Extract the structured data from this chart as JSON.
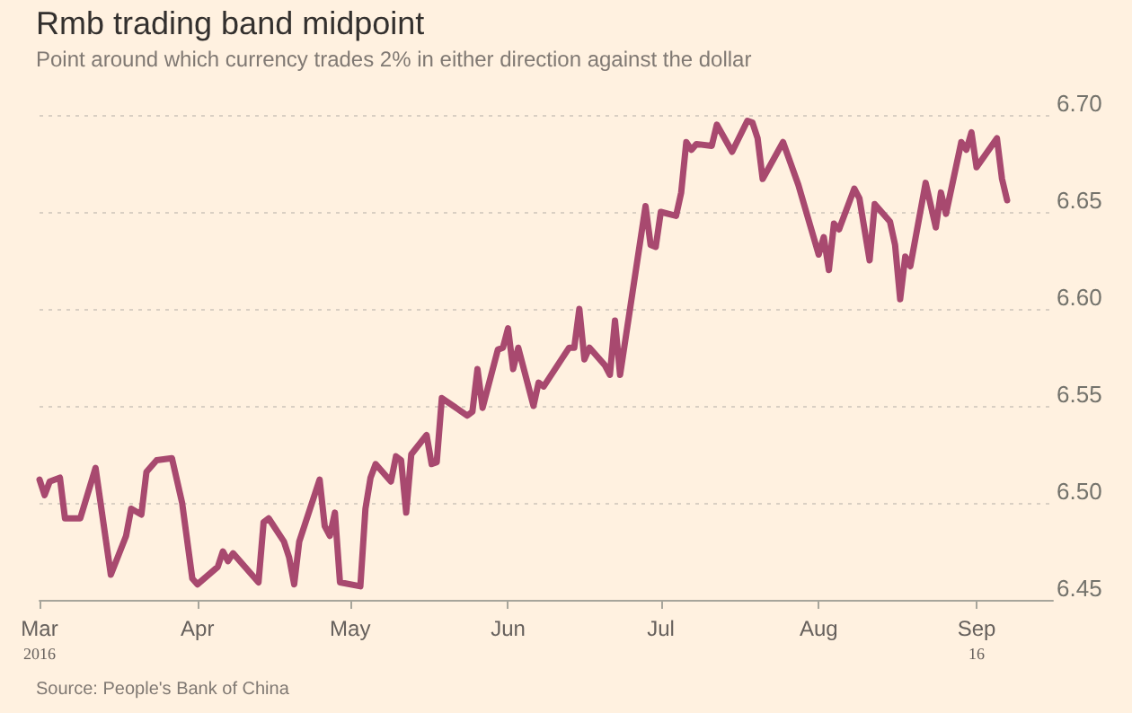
{
  "chart_data": {
    "type": "line",
    "title": "Rmb trading band midpoint",
    "subtitle": "Point around which currency trades 2% in either direction against the dollar",
    "x": [
      "2016-03-01",
      "2016-03-02",
      "2016-03-03",
      "2016-03-05",
      "2016-03-06",
      "2016-03-09",
      "2016-03-12",
      "2016-03-15",
      "2016-03-18",
      "2016-03-19",
      "2016-03-21",
      "2016-03-22",
      "2016-03-24",
      "2016-03-27",
      "2016-03-29",
      "2016-03-31",
      "2016-04-01",
      "2016-04-05",
      "2016-04-06",
      "2016-04-07",
      "2016-04-08",
      "2016-04-13",
      "2016-04-14",
      "2016-04-15",
      "2016-04-18",
      "2016-04-19",
      "2016-04-20",
      "2016-04-21",
      "2016-04-25",
      "2016-04-26",
      "2016-04-27",
      "2016-04-28",
      "2016-04-29",
      "2016-05-03",
      "2016-05-04",
      "2016-05-05",
      "2016-05-06",
      "2016-05-09",
      "2016-05-10",
      "2016-05-11",
      "2016-05-12",
      "2016-05-13",
      "2016-05-16",
      "2016-05-17",
      "2016-05-18",
      "2016-05-19",
      "2016-05-24",
      "2016-05-25",
      "2016-05-26",
      "2016-05-27",
      "2016-05-30",
      "2016-05-31",
      "2016-06-01",
      "2016-06-02",
      "2016-06-03",
      "2016-06-06",
      "2016-06-07",
      "2016-06-08",
      "2016-06-13",
      "2016-06-14",
      "2016-06-15",
      "2016-06-16",
      "2016-06-17",
      "2016-06-20",
      "2016-06-21",
      "2016-06-22",
      "2016-06-23",
      "2016-06-28",
      "2016-06-29",
      "2016-06-30",
      "2016-07-01",
      "2016-07-04",
      "2016-07-05",
      "2016-07-06",
      "2016-07-07",
      "2016-07-08",
      "2016-07-11",
      "2016-07-12",
      "2016-07-15",
      "2016-07-18",
      "2016-07-19",
      "2016-07-20",
      "2016-07-21",
      "2016-07-25",
      "2016-07-28",
      "2016-08-01",
      "2016-08-02",
      "2016-08-03",
      "2016-08-04",
      "2016-08-05",
      "2016-08-08",
      "2016-08-09",
      "2016-08-11",
      "2016-08-12",
      "2016-08-15",
      "2016-08-16",
      "2016-08-17",
      "2016-08-18",
      "2016-08-19",
      "2016-08-22",
      "2016-08-24",
      "2016-08-25",
      "2016-08-26",
      "2016-08-29",
      "2016-08-30",
      "2016-08-31",
      "2016-09-01",
      "2016-09-05",
      "2016-09-06",
      "2016-09-07"
    ],
    "series": [
      {
        "color": "#a8496f",
        "values": [
          6.512,
          6.504,
          6.511,
          6.513,
          6.492,
          6.492,
          6.518,
          6.463,
          6.483,
          6.497,
          6.494,
          6.516,
          6.522,
          6.523,
          6.5,
          6.461,
          6.458,
          6.467,
          6.475,
          6.47,
          6.474,
          6.459,
          6.49,
          6.492,
          6.48,
          6.472,
          6.458,
          6.48,
          6.512,
          6.488,
          6.483,
          6.495,
          6.459,
          6.457,
          6.497,
          6.513,
          6.52,
          6.511,
          6.524,
          6.522,
          6.495,
          6.525,
          6.535,
          6.52,
          6.521,
          6.554,
          6.545,
          6.547,
          6.569,
          6.549,
          6.579,
          6.58,
          6.59,
          6.569,
          6.58,
          6.55,
          6.562,
          6.56,
          6.58,
          6.58,
          6.6,
          6.574,
          6.58,
          6.571,
          6.566,
          6.594,
          6.566,
          6.653,
          6.633,
          6.632,
          6.65,
          6.648,
          6.66,
          6.686,
          6.682,
          6.685,
          6.684,
          6.695,
          6.681,
          6.697,
          6.696,
          6.688,
          6.667,
          6.686,
          6.664,
          6.628,
          6.637,
          6.62,
          6.644,
          6.641,
          6.662,
          6.657,
          6.625,
          6.654,
          6.645,
          6.633,
          6.605,
          6.627,
          6.622,
          6.665,
          6.642,
          6.66,
          6.649,
          6.686,
          6.682,
          6.691,
          6.673,
          6.688,
          6.667,
          6.656
        ]
      }
    ],
    "xlim": [
      "2016-03-01",
      "2016-09-16"
    ],
    "xticks": [
      {
        "value": "2016-03-01",
        "label": "Mar\n2016"
      },
      {
        "value": "2016-04-01",
        "label": "Apr"
      },
      {
        "value": "2016-05-01",
        "label": "May"
      },
      {
        "value": "2016-06-01",
        "label": "Jun"
      },
      {
        "value": "2016-07-01",
        "label": "Jul"
      },
      {
        "value": "2016-08-01",
        "label": "Aug"
      },
      {
        "value": "2016-09-01",
        "label": "Sep\n16"
      }
    ],
    "ylim": [
      6.45,
      6.7
    ],
    "yticks": [
      {
        "value": 6.45,
        "label": "6.45"
      },
      {
        "value": 6.5,
        "label": "6.50"
      },
      {
        "value": 6.55,
        "label": "6.55"
      },
      {
        "value": 6.6,
        "label": "6.60"
      },
      {
        "value": 6.65,
        "label": "6.65"
      },
      {
        "value": 6.7,
        "label": "6.70"
      }
    ],
    "grid": "y",
    "marker": "none",
    "line_style": "solid",
    "annotations": [
      "Source: People's Bank of China"
    ]
  }
}
